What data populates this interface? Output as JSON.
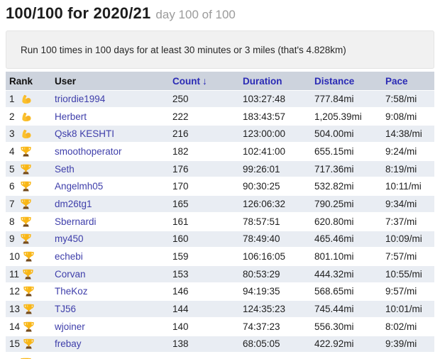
{
  "header": {
    "title": "100/100 for 2020/21",
    "subtitle": "day 100 of 100"
  },
  "description": "Run 100 times in 100 days for at least 30 minutes or 3 miles (that's 4.828km)",
  "table": {
    "columns": [
      {
        "label": "Rank",
        "sortable": false
      },
      {
        "label": "User",
        "sortable": false
      },
      {
        "label": "Count",
        "sortable": true
      },
      {
        "label": "Duration",
        "sortable": true
      },
      {
        "label": "Distance",
        "sortable": true
      },
      {
        "label": "Pace",
        "sortable": true
      }
    ],
    "sort_indicator": {
      "column": "Count",
      "direction": "descending",
      "glyph": "↓"
    },
    "rows": [
      {
        "rank": "1",
        "icon": "bicep",
        "user": "triordie1994",
        "count": "250",
        "duration": "103:27:48",
        "distance": "777.84mi",
        "pace": "7:58/mi"
      },
      {
        "rank": "2",
        "icon": "bicep",
        "user": "Herbert",
        "count": "222",
        "duration": "183:43:57",
        "distance": "1,205.39mi",
        "pace": "9:08/mi"
      },
      {
        "rank": "3",
        "icon": "bicep",
        "user": "Qsk8 KESHTI",
        "count": "216",
        "duration": "123:00:00",
        "distance": "504.00mi",
        "pace": "14:38/mi"
      },
      {
        "rank": "4",
        "icon": "trophy",
        "user": "smoothoperator",
        "count": "182",
        "duration": "102:41:00",
        "distance": "655.15mi",
        "pace": "9:24/mi"
      },
      {
        "rank": "5",
        "icon": "trophy",
        "user": "Seth",
        "count": "176",
        "duration": "99:26:01",
        "distance": "717.36mi",
        "pace": "8:19/mi"
      },
      {
        "rank": "6",
        "icon": "trophy",
        "user": "Angelmh05",
        "count": "170",
        "duration": "90:30:25",
        "distance": "532.82mi",
        "pace": "10:11/mi"
      },
      {
        "rank": "7",
        "icon": "trophy",
        "user": "dm26tg1",
        "count": "165",
        "duration": "126:06:32",
        "distance": "790.25mi",
        "pace": "9:34/mi"
      },
      {
        "rank": "8",
        "icon": "trophy",
        "user": "Sbernardi",
        "count": "161",
        "duration": "78:57:51",
        "distance": "620.80mi",
        "pace": "7:37/mi"
      },
      {
        "rank": "9",
        "icon": "trophy",
        "user": "my450",
        "count": "160",
        "duration": "78:49:40",
        "distance": "465.46mi",
        "pace": "10:09/mi"
      },
      {
        "rank": "10",
        "icon": "trophy",
        "user": "echebi",
        "count": "159",
        "duration": "106:16:05",
        "distance": "801.10mi",
        "pace": "7:57/mi"
      },
      {
        "rank": "11",
        "icon": "trophy",
        "user": "Corvan",
        "count": "153",
        "duration": "80:53:29",
        "distance": "444.32mi",
        "pace": "10:55/mi"
      },
      {
        "rank": "12",
        "icon": "trophy",
        "user": "TheKoz",
        "count": "146",
        "duration": "94:19:35",
        "distance": "568.65mi",
        "pace": "9:57/mi"
      },
      {
        "rank": "13",
        "icon": "trophy",
        "user": "TJ56",
        "count": "144",
        "duration": "124:35:23",
        "distance": "745.44mi",
        "pace": "10:01/mi"
      },
      {
        "rank": "14",
        "icon": "trophy",
        "user": "wjoiner",
        "count": "140",
        "duration": "74:37:23",
        "distance": "556.30mi",
        "pace": "8:02/mi"
      },
      {
        "rank": "15",
        "icon": "trophy",
        "user": "frebay",
        "count": "138",
        "duration": "68:05:05",
        "distance": "422.92mi",
        "pace": "9:39/mi"
      }
    ],
    "partial_next_row": {
      "rank": "",
      "icon": "trophy",
      "user": "",
      "count": "",
      "duration": "",
      "distance": "",
      "pace": ""
    }
  },
  "colors": {
    "header_link_blue": "#2a2ab5",
    "user_link_blue": "#3e3eaa",
    "table_header_bg": "#cdd3dd",
    "row_stripe_bg": "#e9edf3",
    "description_bg": "#f1f1f1",
    "subtitle_gray": "#9b9b9b",
    "trophy_gold": "#f9b616"
  },
  "icons": {
    "bicep": "flexed-biceps",
    "trophy": "trophy-cup",
    "sort": "arrow-down"
  }
}
